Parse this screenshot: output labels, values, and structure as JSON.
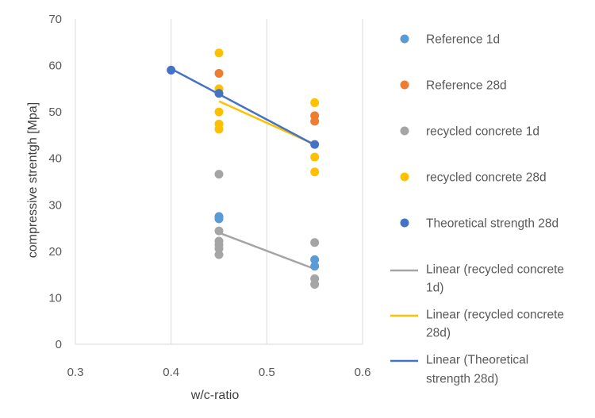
{
  "chart_data": {
    "type": "scatter",
    "xlabel": "w/c-ratio",
    "ylabel": "compressive strentgh [Mpa]",
    "xlim": [
      0.3,
      0.6
    ],
    "ylim": [
      0,
      70
    ],
    "x_ticks": [
      "0.3",
      "0.4",
      "0.5",
      "0.6"
    ],
    "y_ticks": [
      "0",
      "10",
      "20",
      "30",
      "40",
      "50",
      "60",
      "70"
    ],
    "grid": "vertical",
    "legend_position": "right",
    "series": [
      {
        "name": "Reference 1d",
        "color": "#5b9bd5",
        "points": [
          [
            0.45,
            27.5
          ],
          [
            0.45,
            27.0
          ],
          [
            0.55,
            18.2
          ],
          [
            0.55,
            16.8
          ]
        ]
      },
      {
        "name": "Reference 28d",
        "color": "#ed7d31",
        "points": [
          [
            0.45,
            58.3
          ],
          [
            0.55,
            49.2
          ],
          [
            0.55,
            48.0
          ]
        ]
      },
      {
        "name": "recycled concrete 1d",
        "color": "#a5a5a5",
        "points": [
          [
            0.45,
            36.6
          ],
          [
            0.45,
            24.4
          ],
          [
            0.45,
            22.2
          ],
          [
            0.45,
            21.4
          ],
          [
            0.45,
            20.6
          ],
          [
            0.45,
            19.3
          ],
          [
            0.55,
            21.9
          ],
          [
            0.55,
            14.1
          ],
          [
            0.55,
            12.9
          ]
        ]
      },
      {
        "name": "recycled concrete 28d",
        "color": "#ffc000",
        "points": [
          [
            0.45,
            62.7
          ],
          [
            0.45,
            55.0
          ],
          [
            0.45,
            50.0
          ],
          [
            0.45,
            47.4
          ],
          [
            0.45,
            46.3
          ],
          [
            0.55,
            52.0
          ],
          [
            0.55,
            40.3
          ],
          [
            0.55,
            37.1
          ]
        ]
      },
      {
        "name": "Theoretical strength 28d",
        "color": "#4472c4",
        "points": [
          [
            0.4,
            59.0
          ],
          [
            0.45,
            54.0
          ],
          [
            0.55,
            43.0
          ]
        ]
      }
    ],
    "trendlines": [
      {
        "name": "Linear (recycled concrete 1d)",
        "label_lines": [
          "Linear (recycled concrete",
          "1d)"
        ],
        "color": "#a5a5a5",
        "from": [
          0.45,
          24.0
        ],
        "to": [
          0.55,
          16.2
        ]
      },
      {
        "name": "Linear (recycled concrete 28d)",
        "label_lines": [
          "Linear (recycled concrete",
          "28d)"
        ],
        "color": "#ffc000",
        "from": [
          0.45,
          52.3
        ],
        "to": [
          0.55,
          43.0
        ]
      },
      {
        "name": "Linear (Theoretical strength 28d)",
        "label_lines": [
          "Linear (Theoretical",
          "strength 28d)"
        ],
        "color": "#4472c4",
        "from": [
          0.4,
          59.3
        ],
        "to": [
          0.55,
          42.9
        ]
      }
    ]
  }
}
